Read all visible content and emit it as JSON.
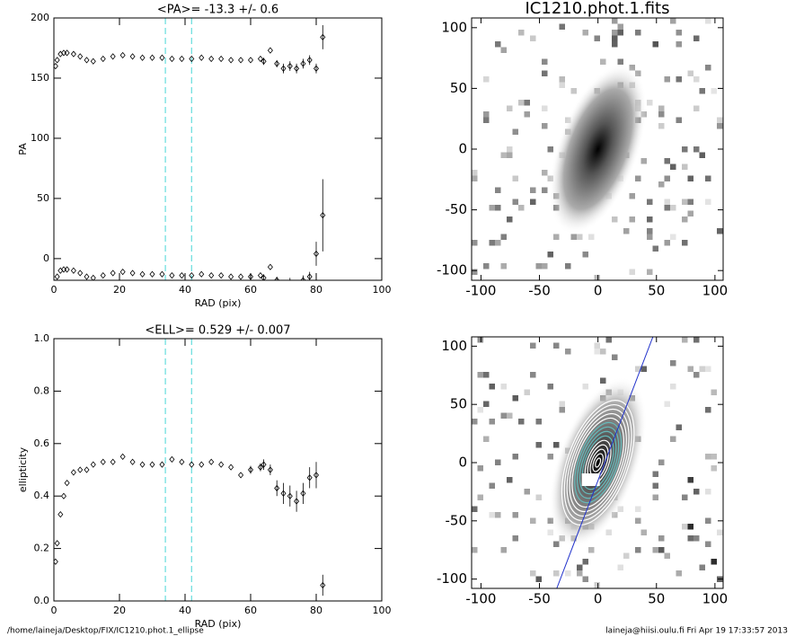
{
  "chart_data": [
    {
      "type": "scatter",
      "title": "<PA>= -13.3 +/-   0.6",
      "x_label": "RAD (pix)",
      "y_label": "PA",
      "x": [
        0.5,
        1,
        2,
        3,
        4,
        6,
        8,
        10,
        12,
        15,
        18,
        21,
        24,
        27,
        30,
        33,
        36,
        39,
        42,
        45,
        48,
        51,
        54,
        57,
        60,
        63,
        64,
        66,
        68,
        70,
        72,
        74,
        76,
        78,
        80,
        82
      ],
      "series": [
        {
          "color": "#000000",
          "values": [
            160,
            165,
            170,
            171,
            171,
            170,
            168,
            165,
            164,
            166,
            168,
            169,
            168,
            167,
            167,
            167,
            166,
            166,
            166,
            167,
            166,
            166,
            165,
            165,
            165,
            166,
            164,
            173,
            162,
            158,
            160,
            158,
            162,
            165,
            158,
            184
          ],
          "errors": [
            1,
            1,
            0.5,
            0.5,
            0.5,
            0.5,
            0.5,
            0.5,
            0.5,
            0.5,
            0.5,
            0.5,
            0.5,
            0.5,
            0.5,
            0.5,
            0.5,
            0.5,
            0.5,
            0.5,
            0.5,
            0.5,
            1,
            1,
            2,
            2,
            3,
            2,
            3,
            4,
            4,
            4,
            4,
            4,
            4,
            10
          ]
        },
        {
          "color": "#000000",
          "values": [
            -20,
            -15,
            -10,
            -9,
            -9,
            -10,
            -12,
            -15,
            -16,
            -14,
            -12,
            -11,
            -12,
            -13,
            -13,
            -13,
            -14,
            -14,
            -14,
            -13,
            -14,
            -14,
            -15,
            -15,
            -15,
            -14,
            -16,
            -7,
            -18,
            -22,
            -20,
            -22,
            -18,
            -15,
            4,
            36
          ],
          "errors": [
            1,
            1,
            0.5,
            0.5,
            0.5,
            0.5,
            0.5,
            0.5,
            0.5,
            0.5,
            0.5,
            0.5,
            0.5,
            0.5,
            0.5,
            0.5,
            0.5,
            0.5,
            0.5,
            0.5,
            0.5,
            0.5,
            1,
            1,
            2,
            2,
            3,
            2,
            3,
            4,
            4,
            4,
            4,
            4,
            10,
            30
          ]
        }
      ],
      "markers_x": [
        34,
        42
      ],
      "marker_color": "#66dddd",
      "xlim": [
        0,
        100
      ],
      "xticks": [
        0,
        20,
        40,
        60,
        80,
        100
      ],
      "ylim": [
        -18,
        200
      ],
      "yticks": [
        0,
        50,
        100,
        150,
        200
      ]
    },
    {
      "type": "image",
      "title": "IC1210.phot.1.fits",
      "xlim": [
        -108,
        107
      ],
      "xticks": [
        -100,
        -50,
        0,
        50,
        100
      ],
      "ylim": [
        -108,
        108
      ],
      "yticks": [
        -100,
        -50,
        0,
        50,
        100
      ]
    },
    {
      "type": "scatter",
      "title": "<ELL>= 0.529 +/-  0.007",
      "x_label": "RAD (pix)",
      "y_label": "ellipticity",
      "x": [
        0.5,
        1,
        2,
        3,
        4,
        6,
        8,
        10,
        12,
        15,
        18,
        21,
        24,
        27,
        30,
        33,
        36,
        39,
        42,
        45,
        48,
        51,
        54,
        57,
        60,
        63,
        64,
        66,
        68,
        70,
        72,
        74,
        76,
        78,
        80,
        82
      ],
      "series": [
        {
          "color": "#000000",
          "values": [
            0.15,
            0.22,
            0.33,
            0.4,
            0.45,
            0.49,
            0.5,
            0.5,
            0.52,
            0.53,
            0.53,
            0.55,
            0.53,
            0.52,
            0.52,
            0.52,
            0.54,
            0.53,
            0.52,
            0.52,
            0.53,
            0.52,
            0.51,
            0.48,
            0.5,
            0.51,
            0.52,
            0.5,
            0.43,
            0.41,
            0.4,
            0.38,
            0.41,
            0.47,
            0.48,
            0.06
          ],
          "errors": [
            0.01,
            0.01,
            0.005,
            0.005,
            0.005,
            0.005,
            0.005,
            0.005,
            0.005,
            0.005,
            0.005,
            0.005,
            0.005,
            0.005,
            0.005,
            0.005,
            0.005,
            0.005,
            0.01,
            0.01,
            0.01,
            0.01,
            0.01,
            0.01,
            0.015,
            0.015,
            0.02,
            0.02,
            0.03,
            0.04,
            0.04,
            0.04,
            0.04,
            0.04,
            0.05,
            0.04
          ]
        }
      ],
      "markers_x": [
        34,
        42
      ],
      "marker_color": "#66dddd",
      "xlim": [
        0,
        100
      ],
      "xticks": [
        0,
        20,
        40,
        60,
        80,
        100
      ],
      "ylim": [
        0,
        1
      ],
      "yticks": [
        {
          "value": 0,
          "label": "0.0"
        },
        0.2,
        0.4,
        0.6,
        0.8,
        {
          "value": 1,
          "label": "1.0"
        }
      ]
    },
    {
      "type": "image",
      "xlim": [
        -108,
        107
      ],
      "xticks": [
        -100,
        -50,
        0,
        50,
        100
      ],
      "ylim": [
        -108,
        108
      ],
      "yticks": [
        -100,
        -50,
        0,
        50,
        100
      ]
    }
  ],
  "footer": {
    "path": "/home/laineja/Desktop/FIX/IC1210.phot.1_ellipse",
    "stamp": "laineja@hiisi.oulu.fi  Fri Apr 19 17:33:57 2013"
  }
}
